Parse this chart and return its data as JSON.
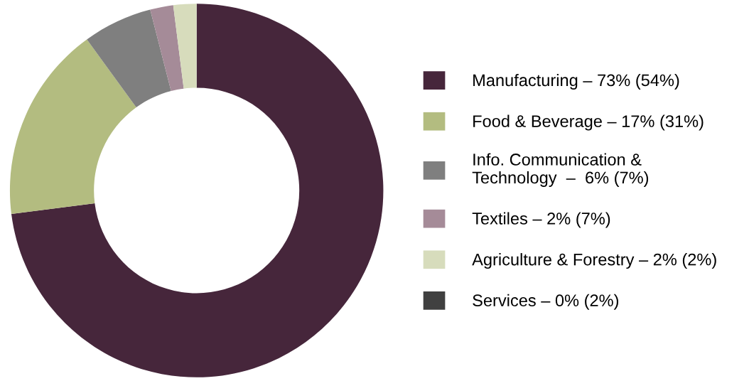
{
  "chart_data": {
    "type": "donut",
    "categories": [
      "Manufacturing – 73% (54%)",
      "Food & Beverage – 17% (31%)",
      "Info. Communication &\nTechnology  –  6% (7%)",
      "Textiles – 2% (7%)",
      "Agriculture & Forestry – 2% (2%)",
      "Services – 0% (2%)"
    ],
    "values": [
      73,
      17,
      6,
      2,
      2,
      0
    ],
    "colors": [
      "#46263b",
      "#b3bc80",
      "#7f7f7f",
      "#a58b98",
      "#d7dcbc",
      "#404040"
    ],
    "legend": "right"
  }
}
